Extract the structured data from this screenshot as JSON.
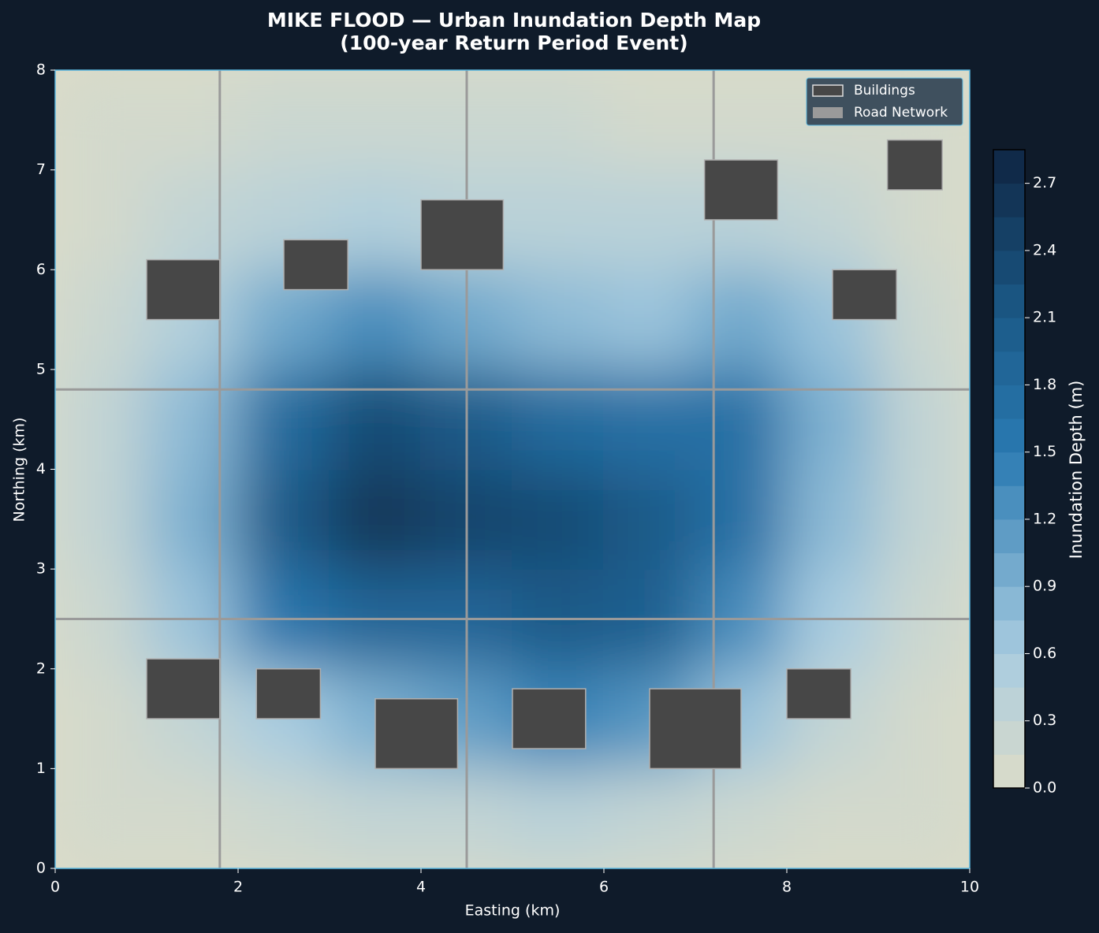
{
  "chart_data": {
    "type": "contour",
    "title": "MIKE FLOOD — Urban Inundation Depth Map",
    "subtitle": "(100-year Return Period Event)",
    "x_label": "Easting (km)",
    "y_label": "Northing (km)",
    "xlim": [
      0,
      10
    ],
    "ylim": [
      0,
      8
    ],
    "xticks": [
      0,
      2,
      4,
      6,
      8,
      10
    ],
    "yticks": [
      0,
      1,
      2,
      3,
      4,
      5,
      6,
      7,
      8
    ],
    "depth": {
      "x": [
        0.5,
        1.5,
        2.5,
        3.5,
        4.5,
        5.5,
        6.5,
        7.5,
        8.5,
        9.5
      ],
      "y": [
        0.5,
        1.5,
        2.5,
        3.5,
        4.5,
        5.5,
        6.5,
        7.5
      ],
      "z": [
        [
          0.1,
          0.1,
          0.2,
          0.3,
          0.3,
          0.4,
          0.3,
          0.2,
          0.1,
          0.1
        ],
        [
          0.1,
          0.3,
          0.6,
          0.9,
          1.1,
          1.4,
          1.2,
          0.7,
          0.3,
          0.1
        ],
        [
          0.2,
          0.7,
          1.6,
          1.9,
          1.9,
          2.1,
          2.0,
          1.3,
          0.6,
          0.2
        ],
        [
          0.3,
          0.9,
          2.1,
          2.6,
          2.4,
          2.3,
          2.1,
          1.7,
          0.8,
          0.3
        ],
        [
          0.3,
          0.8,
          1.8,
          2.3,
          2.1,
          1.8,
          1.7,
          1.7,
          0.9,
          0.3
        ],
        [
          0.2,
          0.5,
          1.0,
          1.3,
          1.0,
          0.8,
          0.7,
          1.0,
          0.7,
          0.2
        ],
        [
          0.1,
          0.3,
          0.4,
          0.5,
          0.4,
          0.4,
          0.4,
          0.4,
          0.3,
          0.1
        ],
        [
          0.1,
          0.1,
          0.2,
          0.2,
          0.2,
          0.2,
          0.1,
          0.1,
          0.1,
          0.1
        ]
      ]
    },
    "colorscale": [
      [
        0,
        "#dcdcc8"
      ],
      [
        0.6,
        "#a8cce0"
      ],
      [
        1.5,
        "#2a7ab2"
      ],
      [
        2.1,
        "#1b5a88"
      ],
      [
        2.85,
        "#0f2542"
      ]
    ],
    "colorbar": {
      "label": "Inundation Depth (m)",
      "lim": [
        0,
        2.85
      ],
      "ticks": [
        {
          "value": 0,
          "label": "0.0"
        },
        0.3,
        0.6,
        0.9,
        1.2,
        1.5,
        1.8,
        2.1,
        2.4,
        2.7
      ]
    },
    "buildings": [
      {
        "x0": 1.0,
        "x1": 1.8,
        "y0": 5.5,
        "y1": 6.1
      },
      {
        "x0": 2.5,
        "x1": 3.2,
        "y0": 5.8,
        "y1": 6.3
      },
      {
        "x0": 4.0,
        "x1": 4.9,
        "y0": 6.0,
        "y1": 6.7
      },
      {
        "x0": 7.1,
        "x1": 7.9,
        "y0": 6.5,
        "y1": 7.1
      },
      {
        "x0": 9.1,
        "x1": 9.7,
        "y0": 6.8,
        "y1": 7.3
      },
      {
        "x0": 8.5,
        "x1": 9.2,
        "y0": 5.5,
        "y1": 6.0
      },
      {
        "x0": 1.0,
        "x1": 1.8,
        "y0": 1.5,
        "y1": 2.1
      },
      {
        "x0": 2.2,
        "x1": 2.9,
        "y0": 1.5,
        "y1": 2.0
      },
      {
        "x0": 3.5,
        "x1": 4.4,
        "y0": 1.0,
        "y1": 1.7
      },
      {
        "x0": 5.0,
        "x1": 5.8,
        "y0": 1.2,
        "y1": 1.8
      },
      {
        "x0": 6.5,
        "x1": 7.5,
        "y0": 1.0,
        "y1": 1.8
      },
      {
        "x0": 8.0,
        "x1": 8.7,
        "y0": 1.5,
        "y1": 2.0
      }
    ],
    "roads": {
      "x": [
        1.8,
        4.5,
        7.2
      ],
      "y": [
        2.5,
        4.8
      ]
    },
    "legend": [
      {
        "name": "Buildings",
        "color": "#474747"
      },
      {
        "name": "Road Network",
        "color": "#9a9a9a"
      }
    ],
    "legend_position": "upper right"
  }
}
